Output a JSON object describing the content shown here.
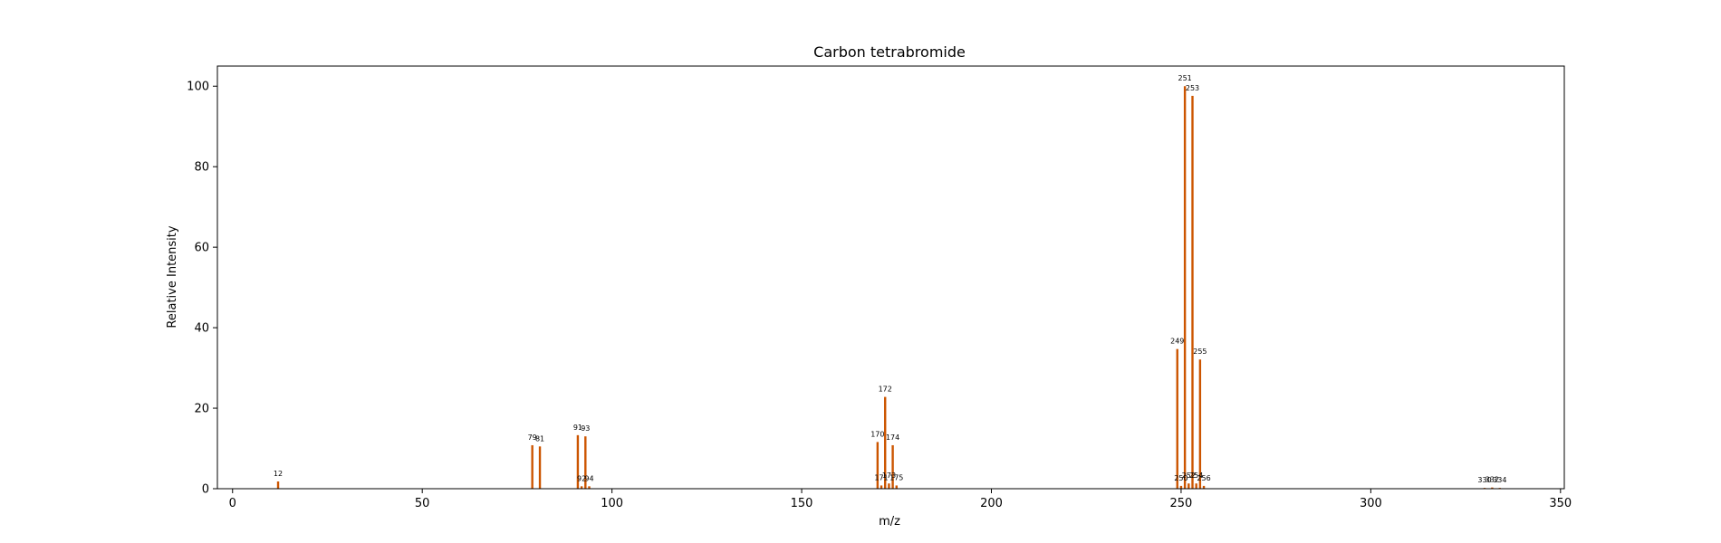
{
  "chart_data": {
    "type": "bar",
    "title": "Carbon tetrabromide",
    "xlabel": "m/z",
    "ylabel": "Relative Intensity",
    "xlim": [
      -4,
      351
    ],
    "ylim": [
      0,
      105
    ],
    "xticks": [
      0,
      50,
      100,
      150,
      200,
      250,
      300,
      350
    ],
    "yticks": [
      0,
      20,
      40,
      60,
      80,
      100
    ],
    "bar_color": "#cc5500",
    "grid": false,
    "peaks": [
      {
        "mz": 12,
        "intensity": 1.8
      },
      {
        "mz": 79,
        "intensity": 10.8
      },
      {
        "mz": 81,
        "intensity": 10.5
      },
      {
        "mz": 91,
        "intensity": 13.3
      },
      {
        "mz": 92,
        "intensity": 0.6
      },
      {
        "mz": 93,
        "intensity": 13.0
      },
      {
        "mz": 94,
        "intensity": 0.6
      },
      {
        "mz": 170,
        "intensity": 11.6
      },
      {
        "mz": 171,
        "intensity": 0.8
      },
      {
        "mz": 172,
        "intensity": 22.8
      },
      {
        "mz": 173,
        "intensity": 1.3
      },
      {
        "mz": 174,
        "intensity": 10.8
      },
      {
        "mz": 175,
        "intensity": 0.8
      },
      {
        "mz": 249,
        "intensity": 34.7
      },
      {
        "mz": 250,
        "intensity": 0.7
      },
      {
        "mz": 251,
        "intensity": 100
      },
      {
        "mz": 252,
        "intensity": 1.3
      },
      {
        "mz": 253,
        "intensity": 97.6
      },
      {
        "mz": 254,
        "intensity": 1.3
      },
      {
        "mz": 255,
        "intensity": 32.1
      },
      {
        "mz": 256,
        "intensity": 0.7
      },
      {
        "mz": 330,
        "intensity": 0.2
      },
      {
        "mz": 332,
        "intensity": 0.3
      },
      {
        "mz": 334,
        "intensity": 0.2
      }
    ]
  }
}
